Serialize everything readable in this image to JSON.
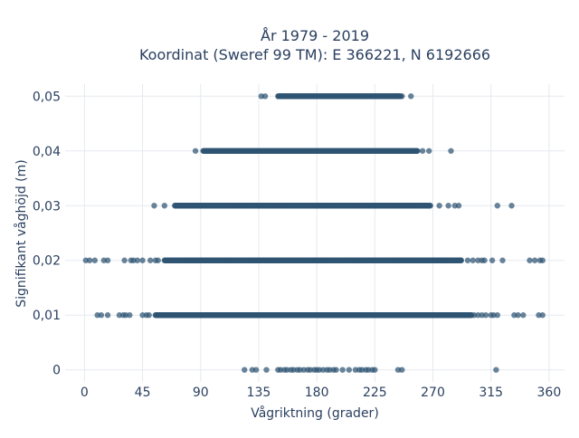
{
  "chart_data": {
    "type": "scatter",
    "title_line1": "År 1979 - 2019",
    "title_line2": "Koordinat (Sweref 99 TM): E 366221, N 6192666",
    "xlabel": "Vågriktning (grader)",
    "ylabel": "Signifikant våghöjd (m)",
    "xlim": [
      -15,
      372
    ],
    "ylim": [
      -0.0022,
      0.0522
    ],
    "x_ticks": [
      0,
      45,
      90,
      135,
      180,
      225,
      270,
      315,
      360
    ],
    "x_tick_labels": [
      "0",
      "45",
      "90",
      "135",
      "180",
      "225",
      "270",
      "315",
      "360"
    ],
    "y_ticks": [
      0,
      0.01,
      0.02,
      0.03,
      0.04,
      0.05
    ],
    "y_tick_labels": [
      "0",
      "0,01",
      "0,02",
      "0,03",
      "0,04",
      "0,05"
    ],
    "grid": true,
    "marker_color": "#2f5573",
    "bands": [
      {
        "y": 0.05,
        "dense_from": 150,
        "dense_to": 245,
        "outliers": [
          137,
          140,
          153,
          241,
          246,
          253
        ]
      },
      {
        "y": 0.04,
        "dense_from": 92,
        "dense_to": 258,
        "outliers": [
          86,
          262,
          267,
          284
        ]
      },
      {
        "y": 0.03,
        "dense_from": 70,
        "dense_to": 268,
        "outliers": [
          54,
          62,
          275,
          282,
          287,
          290,
          320,
          331
        ]
      },
      {
        "y": 0.02,
        "dense_from": 62,
        "dense_to": 292,
        "outliers": [
          1,
          4,
          8,
          15,
          18,
          31,
          36,
          38,
          41,
          45,
          51,
          55,
          57,
          297,
          301,
          305,
          308,
          310,
          316,
          324,
          345,
          349,
          353,
          355
        ]
      },
      {
        "y": 0.01,
        "dense_from": 55,
        "dense_to": 300,
        "outliers": [
          10,
          13,
          18,
          27,
          30,
          32,
          35,
          45,
          48,
          50,
          302,
          305,
          308,
          311,
          315,
          317,
          320,
          333,
          336,
          340,
          352,
          355
        ]
      },
      {
        "y": 0.0,
        "dense_from": 0,
        "dense_to": 0,
        "outliers": [
          124,
          130,
          133,
          141,
          150,
          152,
          155,
          157,
          160,
          162,
          165,
          167,
          170,
          173,
          175,
          178,
          180,
          182,
          185,
          188,
          190,
          193,
          195,
          200,
          205,
          210,
          213,
          215,
          218,
          220,
          223,
          225,
          243,
          246,
          319
        ]
      }
    ]
  }
}
